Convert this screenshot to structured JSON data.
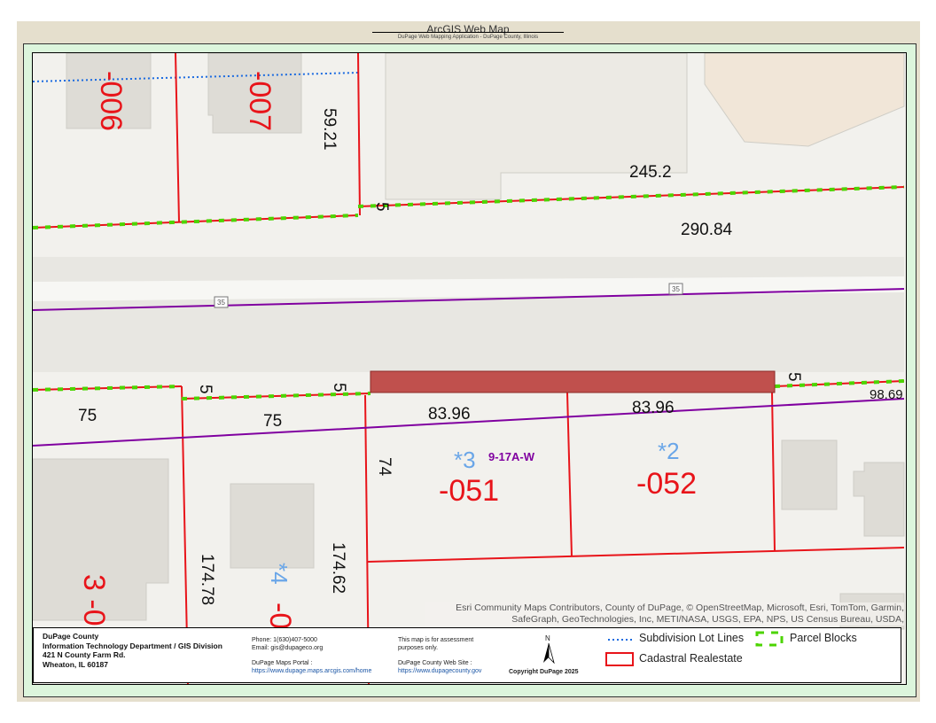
{
  "header": {
    "title": "ArcGIS Web Map",
    "subtitle": "DuPage Web Mapping Application - DuPage County, Illinois"
  },
  "map": {
    "parcel_numbers": [
      "-006",
      "-007",
      "-051",
      "-052",
      "-0",
      "3 -0"
    ],
    "lot_numbers": [
      "*3",
      "*2",
      "*4"
    ],
    "subdivision_label": "9-17A-W",
    "dimensions": [
      "59.21",
      "245.2",
      "5",
      "290.84",
      "75",
      "5",
      "75",
      "5",
      "83.96",
      "83.96",
      "5",
      "98.69",
      "74",
      "174.78",
      "174.62"
    ],
    "route_shield": "35",
    "attribution": "Esri Community Maps Contributors, County of DuPage, © OpenStreetMap, Microsoft, Esri, TomTom, Garmin, SafeGraph, GeoTechnologies, Inc, METI/NASA, USGS, EPA, NPS, US Census Bureau, USDA,",
    "colors": {
      "parcel_line": "#e8141a",
      "lot_number": "#6aa6e8",
      "parcel_block": "#4cd400",
      "subdivision": "#8000a0",
      "highlight": "#c0504d",
      "lot_lines": "#1a6ae0"
    }
  },
  "footer": {
    "org_lines": [
      "DuPage County",
      "Information Technology Department / GIS Division",
      "421 N County Farm Rd.",
      "Wheaton, IL 60187"
    ],
    "phone": "Phone: 1(630)407-5000",
    "email": "Email: gis@dupageco.org",
    "portal_label": "DuPage Maps Portal :",
    "portal_url": "https://www.dupage.maps.arcgis.com/home",
    "disclaimer": "This map is for assessment purposes only.",
    "web_label": "DuPage County Web Site :",
    "web_url": "https://www.dupagecounty.gov",
    "north": "N",
    "copyright": "Copyright DuPage 2025",
    "legend": [
      {
        "label": "Subdivision Lot Lines",
        "symbol": "blue-dotted-line"
      },
      {
        "label": "Parcel Blocks",
        "symbol": "green-dashed-box"
      },
      {
        "label": "Cadastral Realestate",
        "symbol": "red-outline-box"
      }
    ]
  }
}
